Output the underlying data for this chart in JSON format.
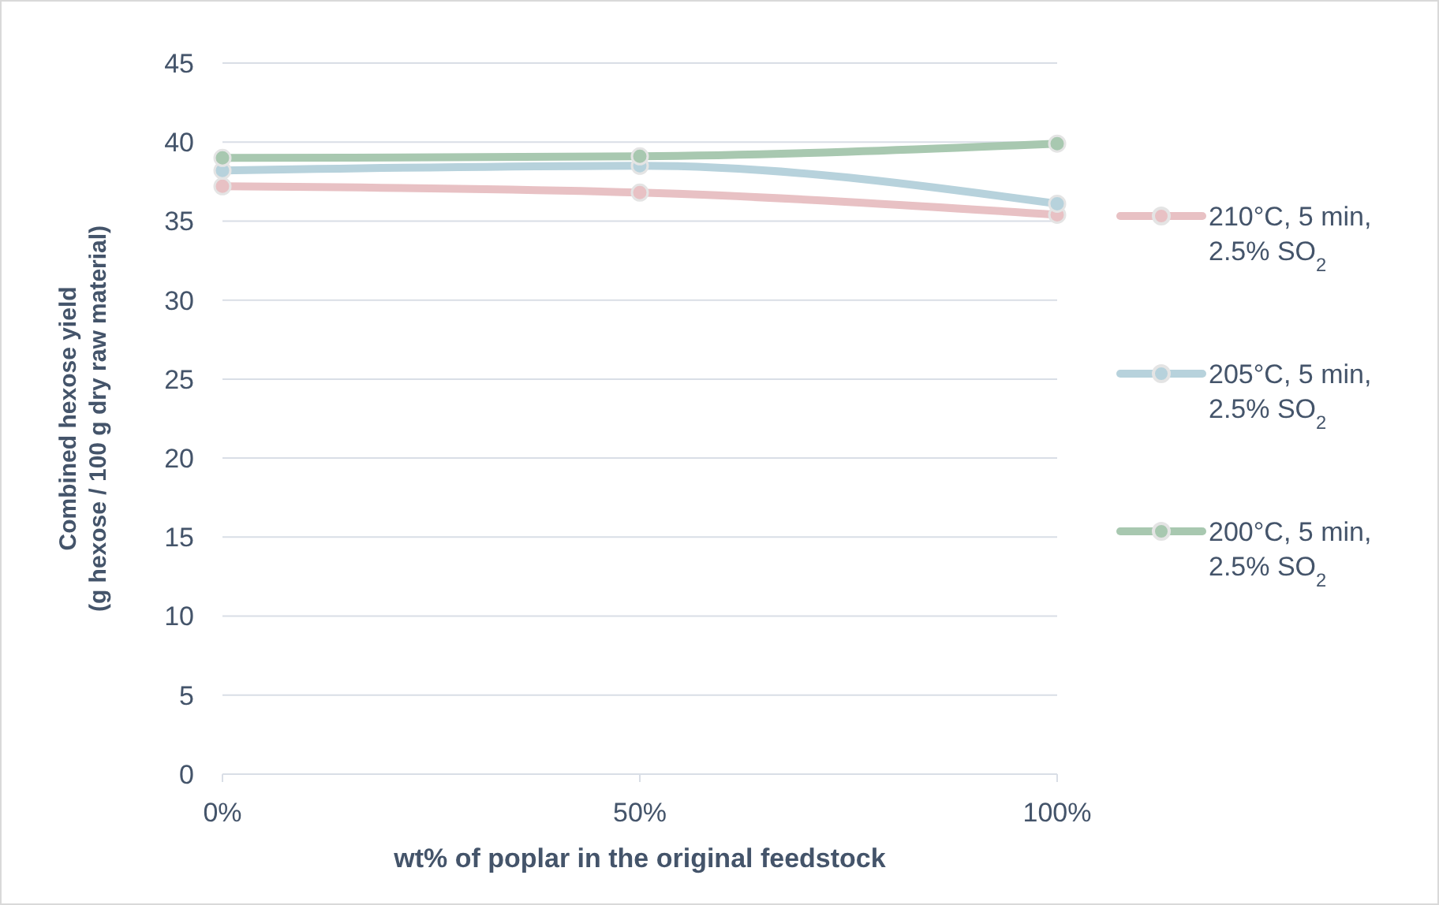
{
  "chart_data": {
    "type": "line",
    "xlabel": "wt% of poplar in the original feedstock",
    "ylabel": "Combined hexose yield\n(g hexose / 100 g dry raw material)",
    "categories": [
      "0%",
      "50%",
      "100%"
    ],
    "series": [
      {
        "name": "210°C, 5 min, 2.5% SO$_{2}$",
        "color": "#e8c1c4",
        "values": [
          37.2,
          36.8,
          35.4
        ]
      },
      {
        "name": "205°C, 5 min, 2.5% SO$_{2}$",
        "color": "#b7d2dc",
        "values": [
          38.2,
          38.5,
          36.1
        ]
      },
      {
        "name": "200°C, 5 min, 2.5% SO$_{2}$",
        "color": "#a8c8b0",
        "values": [
          39.0,
          39.1,
          39.9
        ]
      }
    ],
    "ylim": [
      0,
      45
    ],
    "yticks": [
      0,
      5,
      10,
      15,
      20,
      25,
      30,
      35,
      40,
      45
    ],
    "grid": "y",
    "legend": "right",
    "marker": "circle",
    "line_style": "solid"
  }
}
